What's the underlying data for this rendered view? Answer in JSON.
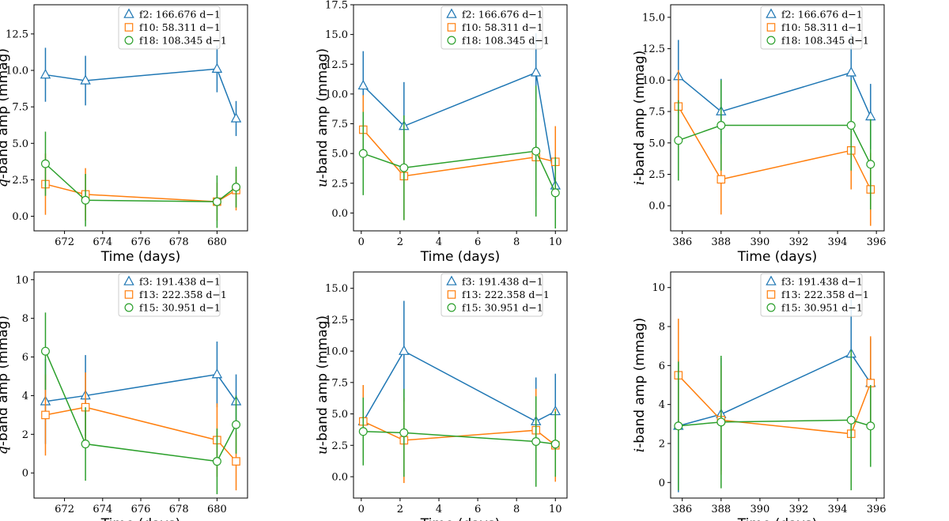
{
  "colors": {
    "f_a": "#1f77b4",
    "f_b": "#ff7f0e",
    "f_c": "#2ca02c"
  },
  "chart_data": [
    {
      "type": "line",
      "id": "top-q",
      "xlabel": "Time (days)",
      "ylabel_band": "q",
      "ylabel_rest": "-band amp (mmag)",
      "xlim": [
        670.4,
        681.6
      ],
      "ylim": [
        -1.0,
        14.5
      ],
      "xticks": [
        "672",
        "674",
        "676",
        "678",
        "680"
      ],
      "xtick_values": [
        672,
        674,
        676,
        678,
        680
      ],
      "yticks": [
        "0.0",
        "2.5",
        "5.0",
        "7.5",
        "10.0",
        "12.5"
      ],
      "ytick_values": [
        0,
        2.5,
        5,
        7.5,
        10,
        12.5
      ],
      "series": [
        {
          "name": "f2",
          "label": "f2: 166.676 d−1",
          "marker": "triangle",
          "color": "#1f77b4",
          "x": [
            671.0,
            673.1,
            680.0,
            681.0
          ],
          "y": [
            9.7,
            9.3,
            10.1,
            6.7
          ],
          "err": [
            1.85,
            1.7,
            1.6,
            1.2
          ]
        },
        {
          "name": "f10",
          "label": "f10: 58.311 d−1",
          "marker": "square",
          "color": "#ff7f0e",
          "x": [
            671.0,
            673.1,
            680.0,
            681.0
          ],
          "y": [
            2.2,
            1.5,
            1.0,
            1.8
          ],
          "err": [
            2.1,
            1.8,
            1.3,
            1.4
          ]
        },
        {
          "name": "f18",
          "label": "f18: 108.345 d−1",
          "marker": "circle",
          "color": "#2ca02c",
          "x": [
            671.0,
            673.1,
            680.0,
            681.0
          ],
          "y": [
            3.6,
            1.1,
            1.0,
            2.0
          ],
          "err": [
            2.2,
            1.8,
            1.8,
            1.4
          ]
        }
      ]
    },
    {
      "type": "line",
      "id": "top-u",
      "xlabel": "Time (days)",
      "ylabel_band": "u",
      "ylabel_rest": "-band amp (mmag)",
      "xlim": [
        -0.4,
        10.6
      ],
      "ylim": [
        -1.5,
        17.5
      ],
      "xticks": [
        "0",
        "2",
        "4",
        "6",
        "8",
        "10"
      ],
      "xtick_values": [
        0,
        2,
        4,
        6,
        8,
        10
      ],
      "yticks": [
        "0.0",
        "2.5",
        "5.0",
        "7.5",
        "10.0",
        "12.5",
        "15.0",
        "17.5"
      ],
      "ytick_values": [
        0,
        2.5,
        5,
        7.5,
        10,
        12.5,
        15,
        17.5
      ],
      "series": [
        {
          "name": "f2",
          "label": "f2: 166.676 d−1",
          "marker": "triangle",
          "color": "#1f77b4",
          "x": [
            0.1,
            2.2,
            9.0,
            10.0
          ],
          "y": [
            10.7,
            7.3,
            11.8,
            2.3
          ],
          "err": [
            2.9,
            3.7,
            3.3,
            2.0
          ]
        },
        {
          "name": "f10",
          "label": "f10: 58.311 d−1",
          "marker": "square",
          "color": "#ff7f0e",
          "x": [
            0.1,
            2.2,
            9.0,
            10.0
          ],
          "y": [
            7.0,
            3.1,
            4.7,
            4.3
          ],
          "err": [
            2.9,
            3.7,
            3.3,
            3.0
          ]
        },
        {
          "name": "f18",
          "label": "f18: 108.345 d−1",
          "marker": "circle",
          "color": "#2ca02c",
          "x": [
            0.1,
            2.2,
            9.0,
            10.0
          ],
          "y": [
            5.0,
            3.8,
            5.2,
            1.7
          ],
          "err": [
            3.5,
            4.4,
            5.5,
            3.0
          ]
        }
      ]
    },
    {
      "type": "line",
      "id": "top-i",
      "xlabel": "Time (days)",
      "ylabel_band": "i",
      "ylabel_rest": "-band amp (mmag)",
      "xlim": [
        385.4,
        396.4
      ],
      "ylim": [
        -2.0,
        16.0
      ],
      "xticks": [
        "386",
        "388",
        "390",
        "392",
        "394",
        "396"
      ],
      "xtick_values": [
        386,
        388,
        390,
        392,
        394,
        396
      ],
      "yticks": [
        "0.0",
        "2.5",
        "5.0",
        "7.5",
        "10.0",
        "12.5",
        "15.0"
      ],
      "ytick_values": [
        0,
        2.5,
        5,
        7.5,
        10,
        12.5,
        15
      ],
      "series": [
        {
          "name": "f2",
          "label": "f2: 166.676 d−1",
          "marker": "triangle",
          "color": "#1f77b4",
          "x": [
            385.8,
            388.0,
            394.7,
            395.7
          ],
          "y": [
            10.3,
            7.5,
            10.6,
            7.1
          ],
          "err": [
            2.9,
            2.6,
            3.1,
            2.6
          ]
        },
        {
          "name": "f10",
          "label": "f10: 58.311 d−1",
          "marker": "square",
          "color": "#ff7f0e",
          "x": [
            385.8,
            388.0,
            394.7,
            395.7
          ],
          "y": [
            7.9,
            2.1,
            4.4,
            1.3
          ],
          "err": [
            2.9,
            2.8,
            3.1,
            2.9
          ]
        },
        {
          "name": "f18",
          "label": "f18: 108.345 d−1",
          "marker": "circle",
          "color": "#2ca02c",
          "x": [
            385.8,
            388.0,
            394.7,
            395.7
          ],
          "y": [
            5.2,
            6.4,
            6.4,
            3.3
          ],
          "err": [
            3.2,
            3.6,
            3.6,
            3.6
          ]
        }
      ]
    },
    {
      "type": "line",
      "id": "bottom-q",
      "xlabel": "Time (days)",
      "ylabel_band": "q",
      "ylabel_rest": "-band amp (mmag)",
      "xlim": [
        670.4,
        681.6
      ],
      "ylim": [
        -1.3,
        10.4
      ],
      "xticks": [
        "672",
        "674",
        "676",
        "678",
        "680"
      ],
      "xtick_values": [
        672,
        674,
        676,
        678,
        680
      ],
      "yticks": [
        "0",
        "2",
        "4",
        "6",
        "8",
        "10"
      ],
      "ytick_values": [
        0,
        2,
        4,
        6,
        8,
        10
      ],
      "series": [
        {
          "name": "f3",
          "label": "f3: 191.438 d−1",
          "marker": "triangle",
          "color": "#1f77b4",
          "x": [
            671.0,
            673.1,
            680.0,
            681.0
          ],
          "y": [
            3.7,
            4.0,
            5.1,
            3.7
          ],
          "err": [
            2.2,
            2.1,
            1.7,
            1.4
          ]
        },
        {
          "name": "f13",
          "label": "f13: 222.358 d−1",
          "marker": "square",
          "color": "#ff7f0e",
          "x": [
            671.0,
            673.1,
            680.0,
            681.0
          ],
          "y": [
            3.0,
            3.4,
            1.7,
            0.6
          ],
          "err": [
            2.1,
            1.8,
            1.9,
            1.5
          ]
        },
        {
          "name": "f15",
          "label": "f15: 30.951 d−1",
          "marker": "circle",
          "color": "#2ca02c",
          "x": [
            671.0,
            673.1,
            680.0,
            681.0
          ],
          "y": [
            6.3,
            1.5,
            0.6,
            2.5
          ],
          "err": [
            2.0,
            1.9,
            1.7,
            1.5
          ]
        }
      ]
    },
    {
      "type": "line",
      "id": "bottom-u",
      "xlabel": "Time (days)",
      "ylabel_band": "u",
      "ylabel_rest": "-band amp (mmag)",
      "xlim": [
        -0.4,
        10.6
      ],
      "ylim": [
        -1.7,
        16.3
      ],
      "xticks": [
        "0",
        "2",
        "4",
        "6",
        "8",
        "10"
      ],
      "xtick_values": [
        0,
        2,
        4,
        6,
        8,
        10
      ],
      "yticks": [
        "0.0",
        "2.5",
        "5.0",
        "7.5",
        "10.0",
        "12.5",
        "15.0"
      ],
      "ytick_values": [
        0,
        2.5,
        5,
        7.5,
        10,
        12.5,
        15
      ],
      "series": [
        {
          "name": "f3",
          "label": "f3: 191.438 d−1",
          "marker": "triangle",
          "color": "#1f77b4",
          "x": [
            0.1,
            2.2,
            9.0,
            10.0
          ],
          "y": [
            4.4,
            10.0,
            4.4,
            5.2
          ],
          "err": [
            2.9,
            4.0,
            3.5,
            3.0
          ]
        },
        {
          "name": "f13",
          "label": "f13: 222.358 d−1",
          "marker": "square",
          "color": "#ff7f0e",
          "x": [
            0.1,
            2.2,
            9.0,
            10.0
          ],
          "y": [
            4.4,
            2.9,
            3.7,
            2.5
          ],
          "err": [
            2.9,
            3.4,
            3.3,
            2.9
          ]
        },
        {
          "name": "f15",
          "label": "f15: 30.951 d−1",
          "marker": "circle",
          "color": "#2ca02c",
          "x": [
            0.1,
            2.2,
            9.0,
            10.0
          ],
          "y": [
            3.6,
            3.5,
            2.8,
            2.6
          ],
          "err": [
            2.7,
            3.5,
            3.6,
            2.6
          ]
        }
      ]
    },
    {
      "type": "line",
      "id": "bottom-i",
      "xlabel": "Time (days)",
      "ylabel_band": "i",
      "ylabel_rest": "-band amp (mmag)",
      "xlim": [
        385.4,
        396.4
      ],
      "ylim": [
        -0.8,
        10.8
      ],
      "xticks": [
        "386",
        "388",
        "390",
        "392",
        "394",
        "396"
      ],
      "xtick_values": [
        386,
        388,
        390,
        392,
        394,
        396
      ],
      "yticks": [
        "0",
        "2",
        "4",
        "6",
        "8",
        "10"
      ],
      "ytick_values": [
        0,
        2,
        4,
        6,
        8,
        10
      ],
      "series": [
        {
          "name": "f3",
          "label": "f3: 191.438 d−1",
          "marker": "triangle",
          "color": "#1f77b4",
          "x": [
            385.8,
            388.0,
            394.7,
            395.7
          ],
          "y": [
            2.9,
            3.5,
            6.6,
            5.1
          ],
          "err": [
            3.4,
            2.9,
            2.8,
            2.3
          ]
        },
        {
          "name": "f13",
          "label": "f13: 222.358 d−1",
          "marker": "square",
          "color": "#ff7f0e",
          "x": [
            385.8,
            388.0,
            394.7,
            395.7
          ],
          "y": [
            5.5,
            3.2,
            2.5,
            5.1
          ],
          "err": [
            2.9,
            2.8,
            2.6,
            2.4
          ]
        },
        {
          "name": "f15",
          "label": "f15: 30.951 d−1",
          "marker": "circle",
          "color": "#2ca02c",
          "x": [
            385.8,
            388.0,
            394.7,
            395.7
          ],
          "y": [
            2.9,
            3.1,
            3.2,
            2.9
          ],
          "err": [
            3.3,
            3.4,
            3.6,
            2.1
          ]
        }
      ]
    }
  ]
}
